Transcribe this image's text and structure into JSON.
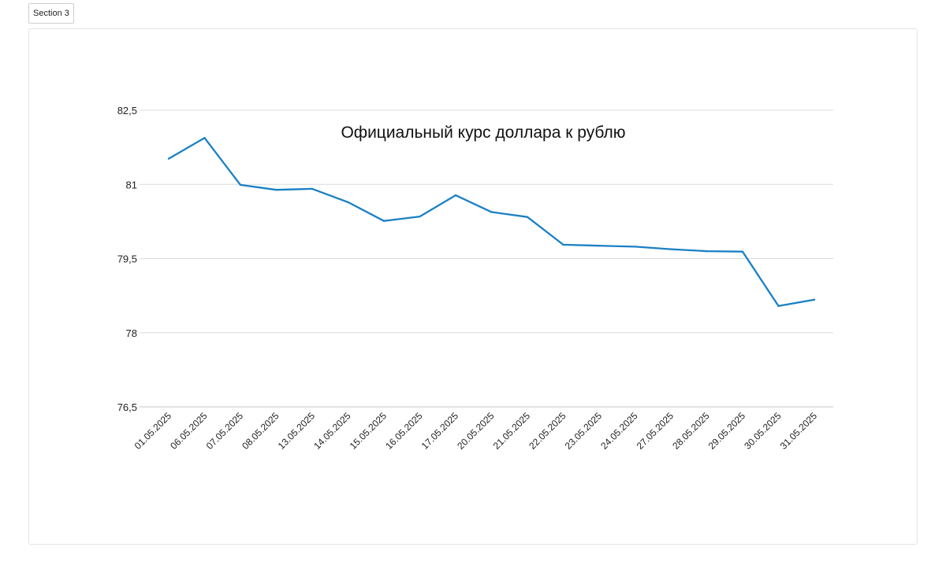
{
  "tab": {
    "label": "Section 3"
  },
  "chart_data": {
    "type": "line",
    "title": "Официальный курс доллара к рублю",
    "xlabel": "",
    "ylabel": "",
    "categories": [
      "01.05.2025",
      "06.05.2025",
      "07.05.2025",
      "08.05.2025",
      "13.05.2025",
      "14.05.2025",
      "15.05.2025",
      "16.05.2025",
      "17.05.2025",
      "20.05.2025",
      "21.05.2025",
      "22.05.2025",
      "23.05.2025",
      "24.05.2025",
      "27.05.2025",
      "28.05.2025",
      "29.05.2025",
      "30.05.2025",
      "31.05.2025"
    ],
    "series": [
      {
        "values": [
          81.52,
          81.94,
          80.99,
          80.89,
          80.91,
          80.64,
          80.26,
          80.35,
          80.78,
          80.44,
          80.34,
          79.78,
          79.76,
          79.74,
          79.69,
          79.65,
          79.64,
          78.54,
          78.67
        ]
      }
    ],
    "ylim": [
      76.5,
      82.5
    ],
    "yticks": [
      "76,5",
      "78",
      "79,5",
      "81",
      "82,5"
    ],
    "grid": true,
    "line_color": "#1a80c4",
    "grid_color": "#dcdcdc"
  }
}
